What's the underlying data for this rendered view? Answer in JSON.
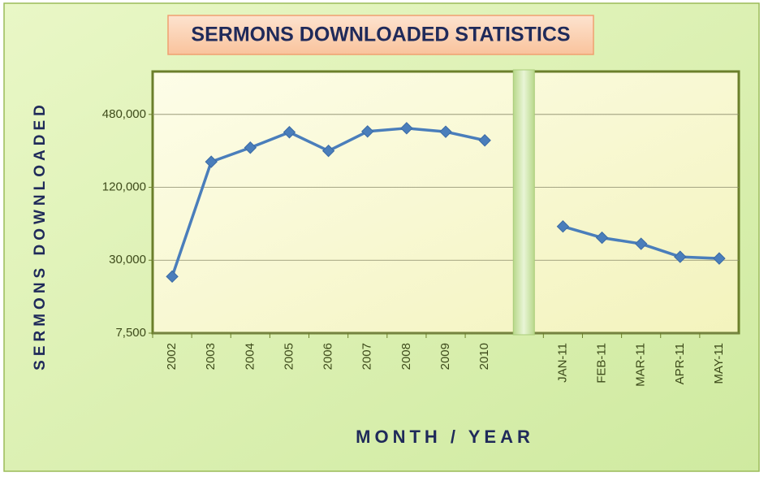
{
  "chart_data": {
    "type": "line",
    "title": "SERMONS DOWNLOADED STATISTICS",
    "x_label": "MONTH / YEAR",
    "y_label": "SERMONS DOWNLOADED",
    "categories": [
      "2002",
      "2003",
      "2004",
      "2005",
      "2006",
      "2007",
      "2008",
      "2009",
      "2010",
      null,
      "JAN-11",
      "FEB-11",
      "MAR-11",
      "APR-11",
      "MAY-11"
    ],
    "series": [
      {
        "name": "Sermons downloaded",
        "color": "#4a7ebb",
        "values": [
          22000,
          195000,
          255000,
          342000,
          240000,
          347000,
          369000,
          345000,
          293000,
          null,
          57000,
          46000,
          41000,
          32000,
          31000
        ]
      }
    ],
    "log_scale": true,
    "ylim": [
      7500,
      1085000
    ],
    "yticks": [
      {
        "value": 7500,
        "label": "7,500"
      },
      {
        "value": 30000,
        "label": "30,000"
      },
      {
        "value": 120000,
        "label": "120,000"
      },
      {
        "value": 480000,
        "label": "480,000"
      }
    ],
    "grid": true
  }
}
